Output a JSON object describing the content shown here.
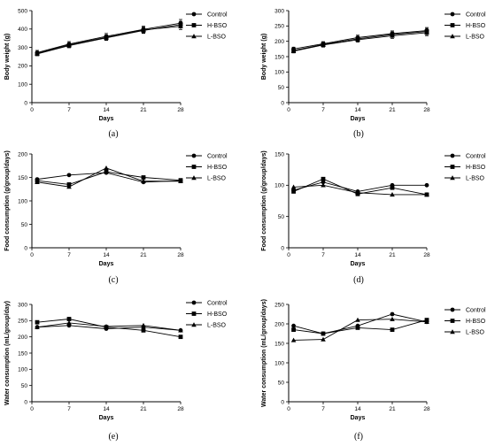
{
  "figure": {
    "legend_labels": [
      "Control",
      "H-BSO",
      "L-BSO"
    ],
    "marker_shapes": [
      "circle",
      "square",
      "triangle"
    ]
  },
  "chart_data": [
    {
      "panel": "(a)",
      "type": "line",
      "xlabel": "Days",
      "ylabel": "Body weight (g)",
      "x": [
        1,
        7,
        14,
        21,
        28
      ],
      "xticks": [
        0,
        7,
        14,
        21,
        28
      ],
      "xlim": [
        0,
        28
      ],
      "ylim": [
        0,
        500
      ],
      "yticks": [
        0,
        100,
        200,
        300,
        400,
        500
      ],
      "error_bars": true,
      "legend_position": "right",
      "series": [
        {
          "name": "Control",
          "values": [
            272,
            318,
            360,
            398,
            432
          ],
          "errors": [
            12,
            14,
            16,
            18,
            20
          ]
        },
        {
          "name": "H-BSO",
          "values": [
            265,
            310,
            352,
            392,
            424
          ],
          "errors": [
            10,
            12,
            14,
            16,
            18
          ]
        },
        {
          "name": "L-BSO",
          "values": [
            268,
            314,
            355,
            395,
            415
          ],
          "errors": [
            10,
            12,
            14,
            16,
            18
          ]
        }
      ]
    },
    {
      "panel": "(b)",
      "type": "line",
      "xlabel": "Days",
      "ylabel": "Body weight (g)",
      "x": [
        1,
        7,
        14,
        21,
        28
      ],
      "xticks": [
        0,
        7,
        14,
        21,
        28
      ],
      "xlim": [
        0,
        28
      ],
      "ylim": [
        0,
        300
      ],
      "yticks": [
        0,
        50,
        100,
        150,
        200,
        250,
        300
      ],
      "error_bars": true,
      "legend_position": "right",
      "series": [
        {
          "name": "Control",
          "values": [
            175,
            192,
            212,
            225,
            235
          ],
          "errors": [
            6,
            7,
            8,
            9,
            10
          ]
        },
        {
          "name": "H-BSO",
          "values": [
            170,
            190,
            208,
            222,
            232
          ],
          "errors": [
            6,
            7,
            8,
            9,
            10
          ]
        },
        {
          "name": "L-BSO",
          "values": [
            168,
            188,
            205,
            218,
            228
          ],
          "errors": [
            6,
            7,
            8,
            9,
            10
          ]
        }
      ]
    },
    {
      "panel": "(c)",
      "type": "line",
      "xlabel": "Days",
      "ylabel": "Food consumption (g/group/days)",
      "x": [
        1,
        7,
        14,
        21,
        28
      ],
      "xticks": [
        0,
        7,
        14,
        21,
        28
      ],
      "xlim": [
        0,
        28
      ],
      "ylim": [
        0,
        200
      ],
      "yticks": [
        0,
        50,
        100,
        150,
        200
      ],
      "error_bars": false,
      "legend_position": "right",
      "series": [
        {
          "name": "Control",
          "values": [
            146,
            155,
            160,
            140,
            143
          ]
        },
        {
          "name": "H-BSO",
          "values": [
            143,
            135,
            162,
            150,
            144
          ]
        },
        {
          "name": "L-BSO",
          "values": [
            140,
            130,
            170,
            142,
            142
          ]
        }
      ]
    },
    {
      "panel": "(d)",
      "type": "line",
      "xlabel": "Days",
      "ylabel": "Food consumption (g/group/days)",
      "x": [
        1,
        7,
        14,
        21,
        28
      ],
      "xticks": [
        0,
        7,
        14,
        21,
        28
      ],
      "xlim": [
        0,
        28
      ],
      "ylim": [
        0,
        150
      ],
      "yticks": [
        0,
        50,
        100,
        150
      ],
      "error_bars": false,
      "legend_position": "right",
      "series": [
        {
          "name": "Control",
          "values": [
            92,
            105,
            90,
            100,
            100
          ]
        },
        {
          "name": "H-BSO",
          "values": [
            90,
            110,
            86,
            96,
            85
          ]
        },
        {
          "name": "L-BSO",
          "values": [
            97,
            100,
            88,
            85,
            85
          ]
        }
      ]
    },
    {
      "panel": "(e)",
      "type": "line",
      "xlabel": "Days",
      "ylabel": "Water consumption (mL/group/day)",
      "x": [
        1,
        7,
        14,
        21,
        28
      ],
      "xticks": [
        0,
        7,
        14,
        21,
        28
      ],
      "xlim": [
        0,
        28
      ],
      "ylim": [
        0,
        300
      ],
      "yticks": [
        0,
        50,
        100,
        150,
        200,
        250,
        300
      ],
      "error_bars": false,
      "legend_position": "right",
      "series": [
        {
          "name": "Control",
          "values": [
            230,
            235,
            225,
            230,
            220
          ]
        },
        {
          "name": "H-BSO",
          "values": [
            245,
            255,
            230,
            220,
            200
          ]
        },
        {
          "name": "L-BSO",
          "values": [
            230,
            243,
            232,
            235,
            220
          ]
        }
      ]
    },
    {
      "panel": "(f)",
      "type": "line",
      "xlabel": "Days",
      "ylabel": "Water consumption (mL/group/days)",
      "x": [
        1,
        7,
        14,
        21,
        28
      ],
      "xticks": [
        0,
        7,
        14,
        21,
        28
      ],
      "xlim": [
        0,
        28
      ],
      "ylim": [
        0,
        250
      ],
      "yticks": [
        0,
        50,
        100,
        150,
        200,
        250
      ],
      "error_bars": false,
      "legend_position": "right",
      "series": [
        {
          "name": "Control",
          "values": [
            195,
            175,
            195,
            225,
            205
          ]
        },
        {
          "name": "H-BSO",
          "values": [
            185,
            175,
            190,
            185,
            210
          ]
        },
        {
          "name": "L-BSO",
          "values": [
            158,
            160,
            210,
            212,
            205
          ]
        }
      ]
    }
  ]
}
